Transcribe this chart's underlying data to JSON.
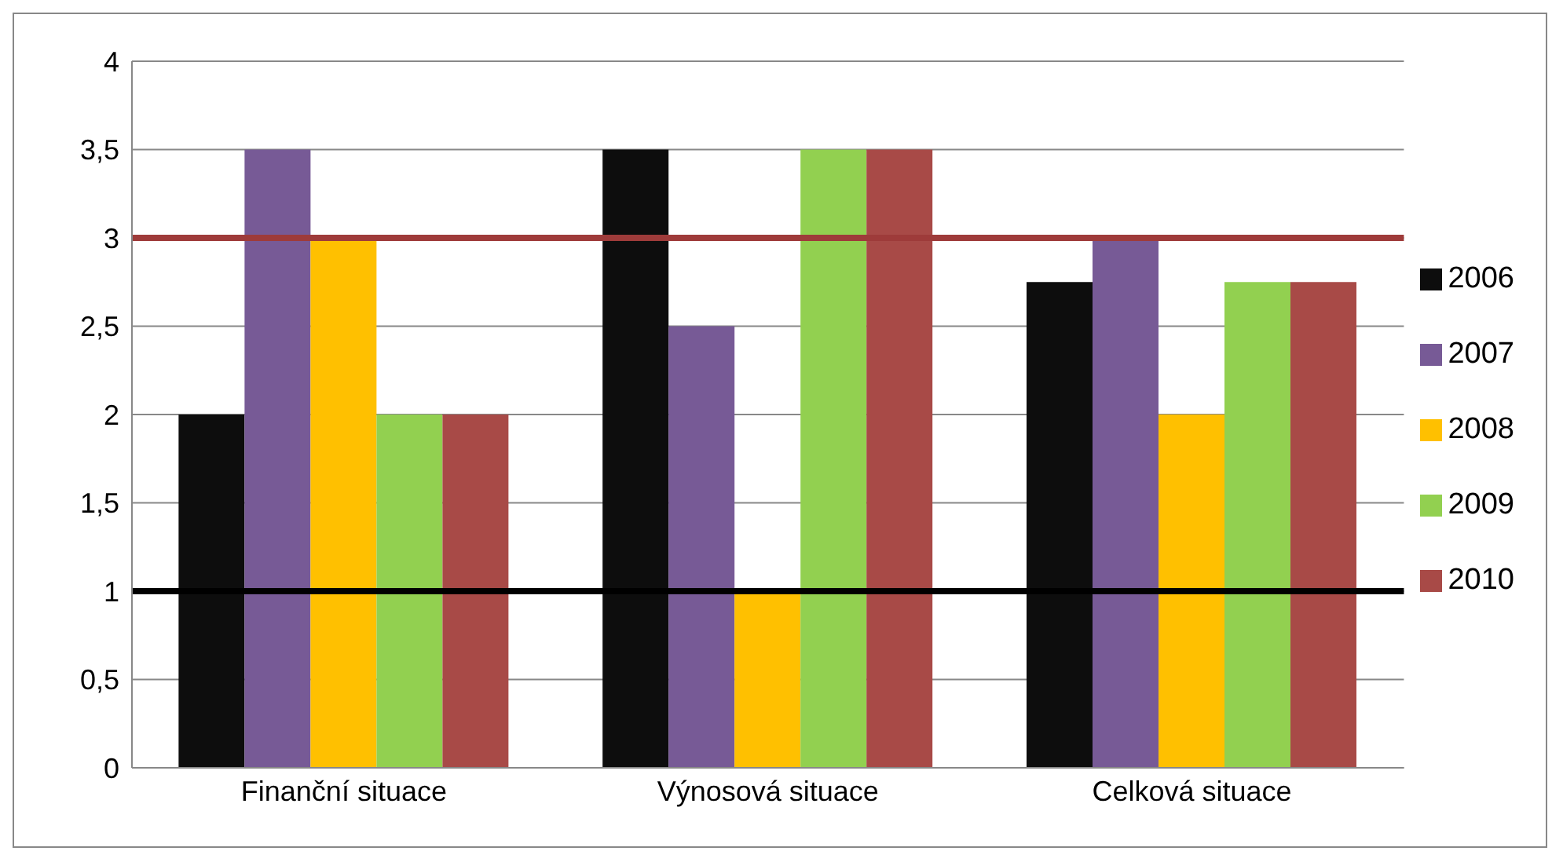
{
  "chart_data": {
    "type": "bar",
    "categories": [
      "Finanční situace",
      "Výnosová situace",
      "Celková situace"
    ],
    "series": [
      {
        "name": "2006",
        "color": "#0d0d0d",
        "values": [
          2,
          3.5,
          2.75
        ]
      },
      {
        "name": "2007",
        "color": "#775a96",
        "values": [
          3.5,
          2.5,
          3
        ]
      },
      {
        "name": "2008",
        "color": "#ffc000",
        "values": [
          3,
          1,
          2
        ]
      },
      {
        "name": "2009",
        "color": "#92d050",
        "values": [
          2,
          3.5,
          2.75
        ]
      },
      {
        "name": "2010",
        "color": "#a84a47",
        "values": [
          2,
          3.5,
          2.75
        ]
      }
    ],
    "ylim": [
      0,
      4
    ],
    "yticks": [
      0,
      {
        "value": 0.5,
        "label": "0,5"
      },
      1,
      {
        "value": 1.5,
        "label": "1,5"
      },
      2,
      {
        "value": 2.5,
        "label": "2,5"
      },
      3,
      {
        "value": 3.5,
        "label": "3,5"
      },
      4
    ],
    "grid": "y",
    "legend": "right",
    "ref_lines": [
      {
        "axis": "y",
        "value": 3,
        "color": "#9e3b3a"
      },
      {
        "axis": "y",
        "value": 1,
        "color": "#000000"
      }
    ]
  }
}
